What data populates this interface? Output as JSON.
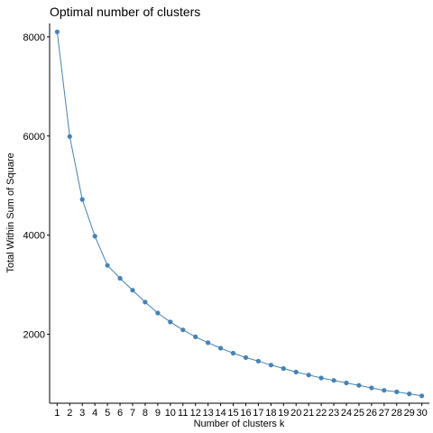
{
  "chart_data": {
    "type": "line",
    "title": "Optimal number of clusters",
    "xlabel": "Number of clusters k",
    "ylabel": "Total Within Sum of Square",
    "x": [
      1,
      2,
      3,
      4,
      5,
      6,
      7,
      8,
      9,
      10,
      11,
      12,
      13,
      14,
      15,
      16,
      17,
      18,
      19,
      20,
      21,
      22,
      23,
      24,
      25,
      26,
      27,
      28,
      29,
      30
    ],
    "values": [
      8100,
      5990,
      4720,
      3980,
      3390,
      3130,
      2890,
      2650,
      2430,
      2250,
      2090,
      1950,
      1830,
      1720,
      1620,
      1530,
      1460,
      1380,
      1310,
      1240,
      1180,
      1120,
      1070,
      1020,
      970,
      920,
      870,
      840,
      800,
      760
    ],
    "ylim": [
      610,
      8270
    ],
    "yticks": [
      2000,
      4000,
      6000,
      8000
    ],
    "grid": false,
    "legend": "none",
    "color": "#4682B4"
  }
}
